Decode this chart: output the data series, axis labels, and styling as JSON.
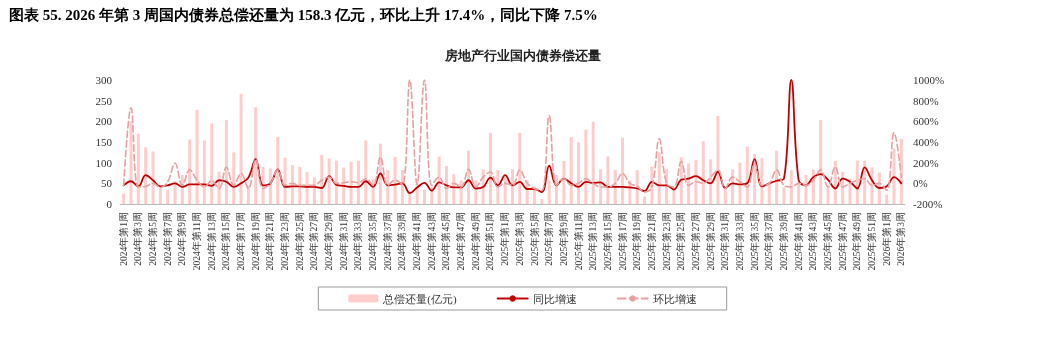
{
  "chart_data": {
    "type": "bar",
    "title": "图表 55. 2026 年第 3 周国内债券总偿还量为 158.3 亿元，环比上升 17.4%，同比下降 7.5%",
    "subtitle": "房地产行业国内债券偿还量",
    "categories": [
      "2024年第1周",
      null,
      "2024年第3周",
      null,
      "2024年第5周",
      null,
      "2024年第7周",
      null,
      "2024年第9周",
      null,
      "2024年第11周",
      null,
      "2024年第13周",
      null,
      "2024年第15周",
      null,
      "2024年第17周",
      null,
      "2024年第19周",
      null,
      "2024年第21周",
      null,
      "2024年第23周",
      null,
      "2024年第25周",
      null,
      "2024年第27周",
      null,
      "2024年第29周",
      null,
      "2024年第31周",
      null,
      "2024年第33周",
      null,
      "2024年第35周",
      null,
      "2024年第37周",
      null,
      "2024年第39周",
      null,
      "2024年第41周",
      null,
      "2024年第43周",
      null,
      "2024年第45周",
      null,
      "2024年第47周",
      null,
      "2024年第49周",
      null,
      "2024年第51周",
      null,
      "2025年第1周",
      null,
      "2025年第3周",
      null,
      "2025年第5周",
      null,
      "2025年第7周",
      null,
      "2025年第9周",
      null,
      "2025年第11周",
      null,
      "2025年第13周",
      null,
      "2025年第15周",
      null,
      "2025年第17周",
      null,
      "2025年第19周",
      null,
      "2025年第21周",
      null,
      "2025年第23周",
      null,
      "2025年第25周",
      null,
      "2025年第27周",
      null,
      "2025年第29周",
      null,
      "2025年第31周",
      null,
      "2025年第33周",
      null,
      "2025年第35周",
      null,
      "2025年第37周",
      null,
      "2025年第39周",
      null,
      "2025年第41周",
      null,
      "2025年第43周",
      null,
      "2025年第45周",
      null,
      "2025年第47周",
      null,
      "2025年第49周",
      null,
      "2025年第51周",
      null,
      "2026年第1周",
      null,
      "2026年第3周"
    ],
    "series": [
      {
        "name": "总偿还量(亿元)",
        "color": "#ffcccc",
        "values": [
          25,
          200,
          170,
          137,
          127,
          40,
          34,
          55,
          70,
          156,
          228,
          154,
          195,
          78,
          203,
          125,
          267,
          45,
          234,
          90,
          86,
          162,
          112,
          94,
          90,
          77,
          64,
          119,
          110,
          105,
          88,
          102,
          105,
          154,
          60,
          146,
          82,
          114,
          82,
          30,
          53,
          35,
          41,
          115,
          92,
          72,
          57,
          129,
          57,
          84,
          172,
          82,
          66,
          84,
          172,
          57,
          41,
          12,
          57,
          70,
          104,
          162,
          149,
          180,
          199,
          84,
          115,
          82,
          160,
          57,
          82,
          18,
          90,
          125,
          84,
          40,
          113,
          98,
          107,
          152,
          108,
          213,
          40,
          84,
          100,
          139,
          121,
          111,
          50,
          129,
          40,
          82,
          50,
          70,
          84,
          203,
          40,
          104,
          78,
          61,
          105,
          105,
          89,
          76,
          23,
          134,
          158
        ]
      },
      {
        "type": "line",
        "name": "同比增速",
        "color": "#c00000",
        "axis": "y2",
        "line_style": "solid",
        "values": [
          -20,
          20,
          -30,
          80,
          30,
          -30,
          -20,
          0,
          -35,
          -10,
          -10,
          -10,
          -25,
          30,
          15,
          -35,
          0,
          55,
          235,
          -20,
          0,
          135,
          -35,
          -30,
          -30,
          -35,
          -35,
          -45,
          70,
          -15,
          -25,
          -35,
          -35,
          20,
          -35,
          95,
          -20,
          -13,
          0,
          -95,
          -40,
          5,
          -70,
          10,
          -20,
          -40,
          -40,
          30,
          -50,
          -35,
          55,
          -20,
          80,
          -20,
          15,
          -55,
          -55,
          -85,
          170,
          -20,
          45,
          0,
          -35,
          15,
          5,
          10,
          -35,
          -35,
          -35,
          -40,
          -50,
          -75,
          15,
          -20,
          -20,
          -60,
          35,
          45,
          70,
          30,
          0,
          110,
          -45,
          0,
          -10,
          0,
          235,
          -30,
          0,
          25,
          45,
          1000,
          30,
          -20,
          60,
          90,
          35,
          -50,
          45,
          15,
          -50,
          155,
          30,
          -45,
          -30,
          60,
          0
        ]
      },
      {
        "type": "line",
        "name": "环比增速",
        "color": "#e8a0a0",
        "axis": "y2",
        "line_style": "dashed",
        "values": [
          -20,
          730,
          -35,
          -30,
          0,
          -40,
          15,
          195,
          -20,
          130,
          30,
          -35,
          25,
          -50,
          155,
          -20,
          95,
          -50,
          230,
          -50,
          0,
          130,
          -20,
          0,
          -20,
          -20,
          -20,
          30,
          60,
          0,
          5,
          15,
          5,
          45,
          -20,
          255,
          -20,
          30,
          -10,
          1000,
          -10,
          1000,
          -20,
          60,
          -50,
          0,
          -35,
          135,
          -35,
          60,
          110,
          -35,
          0,
          -20,
          130,
          0,
          -50,
          -70,
          655,
          -20,
          45,
          -20,
          0,
          45,
          0,
          -35,
          -35,
          0,
          95,
          0,
          -30,
          -85,
          -35,
          430,
          0,
          -35,
          210,
          -20,
          15,
          0,
          60,
          130,
          -50,
          60,
          15,
          -35,
          195,
          -20,
          0,
          130,
          -20,
          -35,
          0,
          -20,
          30,
          130,
          -35,
          160,
          -35,
          0,
          30,
          45,
          -20,
          0,
          -70,
          490,
          60
        ]
      }
    ],
    "ylim": [
      0,
      300
    ],
    "yticks": [
      0,
      50,
      100,
      150,
      200,
      250,
      300
    ],
    "y2lim": [
      -200,
      1000
    ],
    "y2ticks": [
      {
        "value": -200,
        "label": "-200%"
      },
      {
        "value": 0,
        "label": "0%"
      },
      {
        "value": 200,
        "label": "200%"
      },
      {
        "value": 400,
        "label": "400%"
      },
      {
        "value": 600,
        "label": "600%"
      },
      {
        "value": 800,
        "label": "800%"
      },
      {
        "value": 1000,
        "label": "1000%"
      }
    ],
    "legend": "bottom",
    "marker": "none"
  }
}
